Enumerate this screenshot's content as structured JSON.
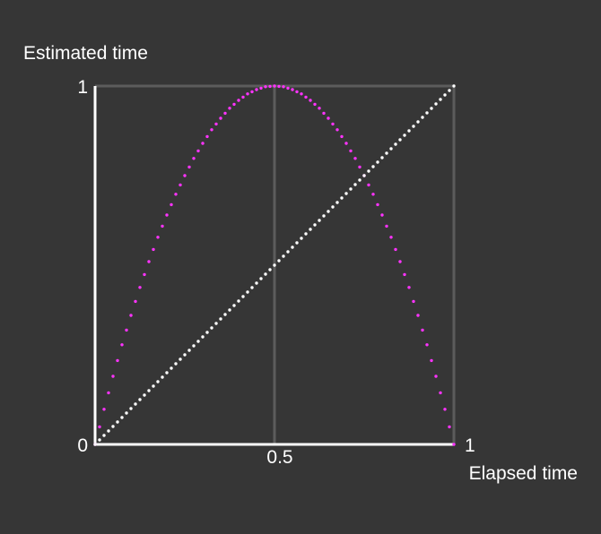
{
  "chart_data": {
    "type": "scatter",
    "title": "",
    "xlabel": "Elapsed time",
    "ylabel": "Estimated time",
    "xlim": [
      0,
      1
    ],
    "ylim": [
      0,
      1
    ],
    "x_ticks": [
      {
        "value": 0.5,
        "label": "0.5"
      },
      {
        "value": 1,
        "label": "1"
      }
    ],
    "y_ticks": [
      {
        "value": 0,
        "label": "0"
      },
      {
        "value": 1,
        "label": "1"
      }
    ],
    "grid": {
      "x": [
        0.5,
        1
      ],
      "y": [
        1
      ]
    },
    "series": [
      {
        "color": "#ff33ff",
        "x": [
          0,
          0.0125,
          0.025,
          0.0375,
          0.05,
          0.0625,
          0.075,
          0.0875,
          0.1,
          0.1125,
          0.125,
          0.1375,
          0.15,
          0.1625,
          0.175,
          0.1875,
          0.2,
          0.2125,
          0.225,
          0.2375,
          0.25,
          0.2625,
          0.275,
          0.2875,
          0.3,
          0.3125,
          0.325,
          0.3375,
          0.35,
          0.3625,
          0.375,
          0.3875,
          0.4,
          0.4125,
          0.425,
          0.4375,
          0.45,
          0.4625,
          0.475,
          0.4875,
          0.5,
          0.5125,
          0.525,
          0.5375,
          0.55,
          0.5625,
          0.575,
          0.5875,
          0.6,
          0.6125,
          0.625,
          0.6375,
          0.65,
          0.6625,
          0.675,
          0.6875,
          0.7,
          0.7125,
          0.725,
          0.7375,
          0.75,
          0.7625,
          0.775,
          0.7875,
          0.8,
          0.8125,
          0.825,
          0.8375,
          0.85,
          0.8625,
          0.875,
          0.8875,
          0.9,
          0.9125,
          0.925,
          0.9375,
          0.95,
          0.9625,
          0.975,
          0.9875,
          1
        ],
        "y": [
          0,
          0.049,
          0.098,
          0.144,
          0.19,
          0.234,
          0.278,
          0.319,
          0.36,
          0.399,
          0.438,
          0.474,
          0.51,
          0.544,
          0.578,
          0.609,
          0.64,
          0.669,
          0.698,
          0.724,
          0.75,
          0.774,
          0.798,
          0.819,
          0.84,
          0.859,
          0.878,
          0.894,
          0.91,
          0.924,
          0.938,
          0.949,
          0.96,
          0.969,
          0.978,
          0.984,
          0.99,
          0.994,
          0.998,
          0.999,
          1,
          0.999,
          0.998,
          0.994,
          0.99,
          0.984,
          0.978,
          0.969,
          0.96,
          0.949,
          0.938,
          0.924,
          0.91,
          0.894,
          0.878,
          0.859,
          0.84,
          0.819,
          0.798,
          0.774,
          0.75,
          0.724,
          0.698,
          0.669,
          0.64,
          0.609,
          0.578,
          0.544,
          0.51,
          0.474,
          0.438,
          0.399,
          0.36,
          0.319,
          0.278,
          0.234,
          0.19,
          0.144,
          0.098,
          0.049,
          0
        ]
      },
      {
        "color": "#ffffff",
        "x": [
          0,
          0.0125,
          0.025,
          0.0375,
          0.05,
          0.0625,
          0.075,
          0.0875,
          0.1,
          0.1125,
          0.125,
          0.1375,
          0.15,
          0.1625,
          0.175,
          0.1875,
          0.2,
          0.2125,
          0.225,
          0.2375,
          0.25,
          0.2625,
          0.275,
          0.2875,
          0.3,
          0.3125,
          0.325,
          0.3375,
          0.35,
          0.3625,
          0.375,
          0.3875,
          0.4,
          0.4125,
          0.425,
          0.4375,
          0.45,
          0.4625,
          0.475,
          0.4875,
          0.5,
          0.5125,
          0.525,
          0.5375,
          0.55,
          0.5625,
          0.575,
          0.5875,
          0.6,
          0.6125,
          0.625,
          0.6375,
          0.65,
          0.6625,
          0.675,
          0.6875,
          0.7,
          0.7125,
          0.725,
          0.7375,
          0.75,
          0.7625,
          0.775,
          0.7875,
          0.8,
          0.8125,
          0.825,
          0.8375,
          0.85,
          0.8625,
          0.875,
          0.8875,
          0.9,
          0.9125,
          0.925,
          0.9375,
          0.95,
          0.9625,
          0.975,
          0.9875,
          1
        ],
        "y": [
          0,
          0.0125,
          0.025,
          0.0375,
          0.05,
          0.0625,
          0.075,
          0.0875,
          0.1,
          0.1125,
          0.125,
          0.1375,
          0.15,
          0.1625,
          0.175,
          0.1875,
          0.2,
          0.2125,
          0.225,
          0.2375,
          0.25,
          0.2625,
          0.275,
          0.2875,
          0.3,
          0.3125,
          0.325,
          0.3375,
          0.35,
          0.3625,
          0.375,
          0.3875,
          0.4,
          0.4125,
          0.425,
          0.4375,
          0.45,
          0.4625,
          0.475,
          0.4875,
          0.5,
          0.5125,
          0.525,
          0.5375,
          0.55,
          0.5625,
          0.575,
          0.5875,
          0.6,
          0.6125,
          0.625,
          0.6375,
          0.65,
          0.6625,
          0.675,
          0.6875,
          0.7,
          0.7125,
          0.725,
          0.7375,
          0.75,
          0.7625,
          0.775,
          0.7875,
          0.8,
          0.8125,
          0.825,
          0.8375,
          0.85,
          0.8625,
          0.875,
          0.8875,
          0.9,
          0.9125,
          0.925,
          0.9375,
          0.95,
          0.9625,
          0.975,
          0.9875,
          1
        ]
      }
    ]
  },
  "colors": {
    "background": "#363636",
    "axis": "#ffffff",
    "grid": "#5c5c5c",
    "text": "#ffffff"
  }
}
